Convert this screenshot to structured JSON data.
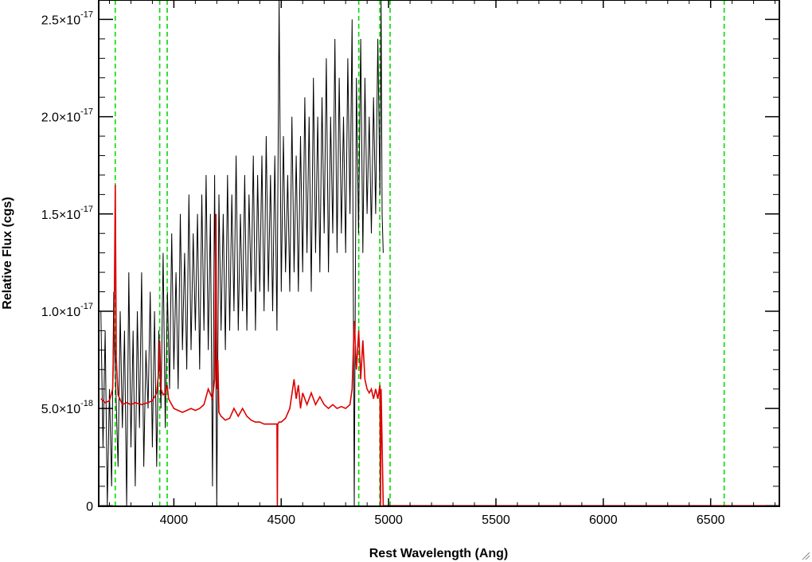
{
  "chart_data": {
    "type": "line",
    "title": "",
    "xlabel": "Rest Wavelength (Ang)",
    "ylabel": "Relative Flux (cgs)",
    "xlim": [
      3650,
      6820
    ],
    "ylim": [
      -2.8e-20,
      2.6e-17
    ],
    "x_ticks": [
      {
        "value": 4000,
        "label": "4000"
      },
      {
        "value": 4500,
        "label": "4500"
      },
      {
        "value": 5000,
        "label": "5000"
      },
      {
        "value": 5500,
        "label": "5500"
      },
      {
        "value": 6000,
        "label": "6000"
      },
      {
        "value": 6500,
        "label": "6500"
      }
    ],
    "y_ticks": [
      {
        "value": 0,
        "label": "0",
        "mantissa": "",
        "exponent": ""
      },
      {
        "value": 5e-18,
        "label": "5.0×10-18",
        "mantissa": "5.0×10",
        "exponent": "-18"
      },
      {
        "value": 1e-17,
        "label": "1.0×10-17",
        "mantissa": "1.0×10",
        "exponent": "-17"
      },
      {
        "value": 1.5e-17,
        "label": "1.5×10-17",
        "mantissa": "1.5×10",
        "exponent": "-17"
      },
      {
        "value": 2e-17,
        "label": "2.0×10-17",
        "mantissa": "2.0×10",
        "exponent": "-17"
      },
      {
        "value": 2.5e-17,
        "label": "2.5×10-17",
        "mantissa": "2.5×10",
        "exponent": "-17"
      }
    ],
    "vertical_lines": {
      "color": "#00dd00",
      "style": "dashed",
      "x": [
        3727,
        3934,
        3969,
        4861,
        4959,
        5007,
        6563
      ]
    },
    "series": [
      {
        "color": "#000000",
        "x": [
          3660,
          3670,
          3680,
          3690,
          3700,
          3710,
          3720,
          3727,
          3740,
          3750,
          3760,
          3770,
          3780,
          3790,
          3800,
          3810,
          3820,
          3830,
          3840,
          3850,
          3860,
          3870,
          3880,
          3890,
          3900,
          3910,
          3920,
          3930,
          3940,
          3950,
          3960,
          3970,
          3980,
          3990,
          4000,
          4010,
          4020,
          4030,
          4040,
          4050,
          4060,
          4070,
          4080,
          4090,
          4100,
          4110,
          4120,
          4130,
          4140,
          4150,
          4160,
          4170,
          4180,
          4190,
          4200,
          4210,
          4220,
          4230,
          4240,
          4250,
          4260,
          4270,
          4280,
          4290,
          4300,
          4310,
          4320,
          4330,
          4340,
          4350,
          4360,
          4370,
          4380,
          4390,
          4400,
          4410,
          4420,
          4430,
          4440,
          4450,
          4460,
          4470,
          4480,
          4490,
          4500,
          4510,
          4520,
          4530,
          4540,
          4550,
          4560,
          4570,
          4580,
          4590,
          4600,
          4610,
          4620,
          4630,
          4640,
          4650,
          4660,
          4670,
          4680,
          4690,
          4700,
          4710,
          4720,
          4730,
          4740,
          4750,
          4760,
          4770,
          4780,
          4790,
          4800,
          4810,
          4820,
          4830,
          4840,
          4850,
          4860,
          4870,
          4880,
          4890,
          4900,
          4910,
          4920,
          4930,
          4940,
          4950,
          4960,
          4965,
          4970,
          4975
        ],
        "y": [
          1e-17,
          3e-18,
          9e-18,
          0.0,
          6e-18,
          1e-18,
          1.1e-17,
          7e-18,
          2e-18,
          1e-17,
          4e-18,
          9e-18,
          0.0,
          1.2e-17,
          3e-18,
          9e-18,
          1e-18,
          1e-17,
          4e-18,
          1.2e-17,
          2e-18,
          8e-18,
          5e-18,
          1.1e-17,
          3e-18,
          1e-17,
          2e-18,
          9e-18,
          5e-18,
          1.3e-17,
          4e-18,
          1.1e-17,
          6e-18,
          1.4e-17,
          7e-18,
          1.2e-17,
          6e-18,
          1.5e-17,
          8e-18,
          1.3e-17,
          7e-18,
          1.6e-17,
          8e-18,
          1.4e-17,
          9e-18,
          1.5e-17,
          7e-18,
          1.6e-17,
          9e-18,
          1.7e-17,
          8e-18,
          1.5e-17,
          1e-18,
          1.7e-17,
          0.0,
          1.6e-17,
          9e-18,
          1.5e-17,
          8e-18,
          1.7e-17,
          9e-18,
          1.6e-17,
          1e-17,
          1.8e-17,
          9e-18,
          1.5e-17,
          1e-17,
          1.7e-17,
          9e-18,
          1.6e-17,
          1.1e-17,
          1.8e-17,
          9e-18,
          1.7e-17,
          1.1e-17,
          1.8e-17,
          1e-17,
          1.9e-17,
          1.1e-17,
          1.7e-17,
          1e-17,
          1.8e-17,
          9e-18,
          2.6e-17,
          1.1e-17,
          1.9e-17,
          1.2e-17,
          1.7e-17,
          1.1e-17,
          2e-17,
          1.2e-17,
          1.8e-17,
          1.1e-17,
          1.9e-17,
          1.2e-17,
          2.1e-17,
          1.3e-17,
          2e-17,
          1.1e-17,
          2.2e-17,
          1.3e-17,
          2e-17,
          1.2e-17,
          2.1e-17,
          1.4e-17,
          2.3e-17,
          1.2e-17,
          2e-17,
          1.4e-17,
          2.4e-17,
          1.3e-17,
          2.2e-17,
          1.4e-17,
          2e-17,
          1.3e-17,
          2.3e-17,
          1.5e-17,
          2.5e-17,
          0.0,
          2.2e-17,
          1.4e-17,
          2.4e-17,
          1.3e-17,
          2.2e-17,
          1.5e-17,
          2e-17,
          1.4e-17,
          2.1e-17,
          1.5e-17,
          2.4e-17,
          1.6e-17,
          2.6e-17,
          1.5e-17,
          1.3e-17
        ]
      },
      {
        "color": "#dd0000",
        "x": [
          3660,
          3680,
          3700,
          3715,
          3722,
          3727,
          3732,
          3740,
          3760,
          3780,
          3800,
          3820,
          3850,
          3880,
          3900,
          3920,
          3930,
          3934,
          3940,
          3950,
          3960,
          3969,
          3975,
          3990,
          4000,
          4020,
          4040,
          4060,
          4080,
          4100,
          4120,
          4140,
          4160,
          4180,
          4190,
          4196,
          4200,
          4205,
          4210,
          4220,
          4240,
          4260,
          4280,
          4300,
          4320,
          4340,
          4360,
          4380,
          4400,
          4420,
          4440,
          4460,
          4480,
          4482,
          4484,
          4490,
          4500,
          4520,
          4540,
          4560,
          4570,
          4580,
          4590,
          4600,
          4620,
          4640,
          4660,
          4680,
          4700,
          4720,
          4740,
          4760,
          4780,
          4800,
          4820,
          4830,
          4840,
          4850,
          4861,
          4870,
          4880,
          4890,
          4900,
          4910,
          4920,
          4930,
          4940,
          4950,
          4960,
          4962,
          4965,
          4975,
          5000,
          5500,
          6000,
          6500,
          6820
        ],
        "y": [
          5.5e-18,
          5.3e-18,
          5.4e-18,
          6e-18,
          9e-18,
          1.65e-17,
          7.5e-18,
          5.7e-18,
          5.2e-18,
          5.3e-18,
          5.2e-18,
          5.3e-18,
          5.2e-18,
          5.3e-18,
          5.4e-18,
          5.8e-18,
          7e-18,
          8.5e-18,
          6e-18,
          5.7e-18,
          5.8e-18,
          6.2e-18,
          5.5e-18,
          5.2e-18,
          5e-18,
          4.9e-18,
          4.8e-18,
          4.9e-18,
          5e-18,
          4.9e-18,
          5e-18,
          5.2e-18,
          6e-18,
          5.5e-18,
          6.5e-18,
          1.5e-17,
          6e-18,
          7.5e-18,
          4.8e-18,
          4.6e-18,
          4.4e-18,
          4.5e-18,
          5e-18,
          4.6e-18,
          5e-18,
          4.6e-18,
          4.4e-18,
          4.3e-18,
          4.3e-18,
          4.2e-18,
          4.2e-18,
          4.2e-18,
          4.2e-18,
          0.0,
          4.2e-18,
          4.3e-18,
          4.3e-18,
          4.5e-18,
          5e-18,
          6.5e-18,
          5.5e-18,
          6.2e-18,
          5e-18,
          5.8e-18,
          5.2e-18,
          5.8e-18,
          5.2e-18,
          5.6e-18,
          5.2e-18,
          5e-18,
          5.2e-18,
          5e-18,
          5.1e-18,
          5e-18,
          5.2e-18,
          6e-18,
          9.5e-18,
          7e-18,
          9e-18,
          6.5e-18,
          8.5e-18,
          6.5e-18,
          6e-18,
          5.8e-18,
          6e-18,
          5.5e-18,
          6e-18,
          5.5e-18,
          6.2e-18,
          0.0,
          6e-18,
          0.0,
          0.0,
          0.0,
          0.0,
          0.0,
          0.0
        ]
      }
    ]
  }
}
